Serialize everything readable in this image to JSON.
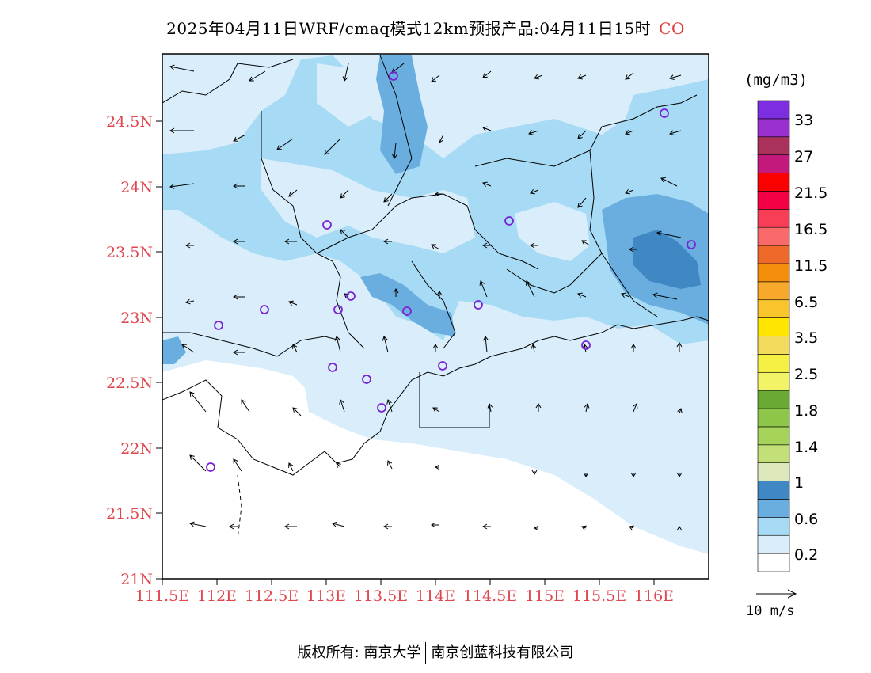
{
  "title": {
    "main": "2025年04月11日WRF/cmaq模式12km预报产品:04月11日15时",
    "species": "CO",
    "species_color": "#e23b3b"
  },
  "axes": {
    "lat_labels": [
      "24.5N",
      "24N",
      "23.5N",
      "23N",
      "22.5N",
      "22N",
      "21.5N",
      "21N"
    ],
    "lon_labels": [
      "111.5E",
      "112E",
      "112.5E",
      "113E",
      "113.5E",
      "114E",
      "114.5E",
      "115E",
      "115.5E",
      "116E"
    ],
    "tick_color": "#e0464d"
  },
  "colorbar": {
    "unit": "(mg/m3)",
    "levels": [
      "0.2",
      "0.6",
      "1",
      "1.4",
      "1.8",
      "2.5",
      "3.5",
      "6.5",
      "11.5",
      "16.5",
      "21.5",
      "27",
      "33"
    ],
    "colors": [
      "#ffffff",
      "#d9eefa",
      "#a7dbf5",
      "#6aaedf",
      "#3f88c3",
      "#dde9bc",
      "#c3df78",
      "#a6d35a",
      "#8ec64a",
      "#6aa934",
      "#f2f366",
      "#f5f044",
      "#f3dc5c",
      "#ffe600",
      "#f8c52c",
      "#f6a92a",
      "#f58e0a",
      "#ef6a2a",
      "#fa6a6a",
      "#f83e57",
      "#f40045",
      "#fb0000",
      "#c4197c",
      "#a9315b",
      "#9b30d0",
      "#7c2ee0"
    ]
  },
  "wind_reference": {
    "label": "10 m/s"
  },
  "station_color": "#7b22d6",
  "copyright": {
    "left": "版权所有: 南京大学",
    "right": "南京创蓝科技有限公司"
  }
}
